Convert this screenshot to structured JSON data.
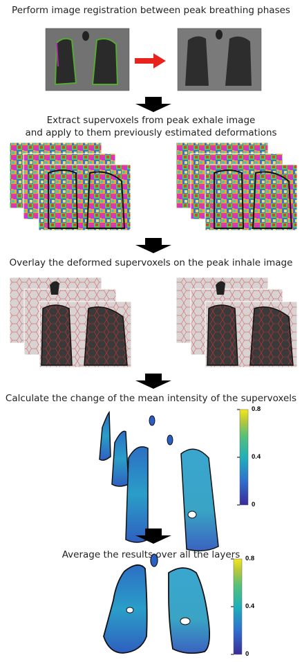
{
  "steps": {
    "s1": "Perform image registration between peak breathing phases",
    "s2_line1": "Extract supervoxels from peak exhale image",
    "s2_line2": "and apply to them previously estimated deformations",
    "s3": "Overlay the deformed supervoxels on the peak inhale image",
    "s4": "Calculate the change of the mean intensity of the supervoxels",
    "s5": "Average the results over all the layers"
  },
  "colorbar1": {
    "max": "0.8",
    "mid": "0.4",
    "min": "0"
  },
  "colorbar2": {
    "max": "0.8",
    "mid": "0.4",
    "min": "0"
  },
  "colors": {
    "arrow": "#e8231c",
    "down_arrow": "#000000",
    "colormap": [
      "#3a2c96",
      "#2f6fd0",
      "#1fb0b8",
      "#55c07a",
      "#b7c93a",
      "#f4e61c"
    ]
  },
  "icons": [
    "right-arrow-icon",
    "down-arrow-icon"
  ]
}
